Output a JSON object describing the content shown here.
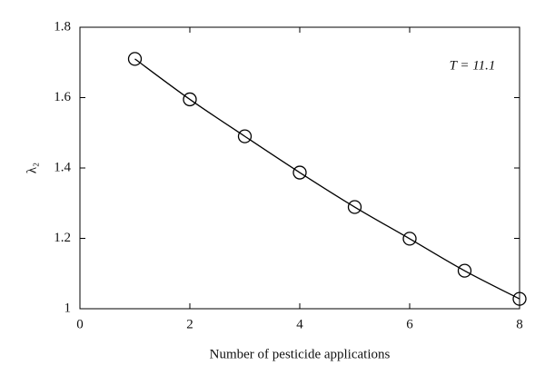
{
  "chart_data": {
    "type": "line",
    "x_label": "Number of pesticide applications",
    "y_label": "λ₂",
    "annotation": "T = 11.1",
    "x": [
      1,
      2,
      3,
      4,
      5,
      6,
      7,
      8
    ],
    "series": [
      {
        "color": "#000000",
        "values": [
          1.71,
          1.595,
          1.49,
          1.387,
          1.289,
          1.199,
          1.108,
          1.028
        ]
      }
    ],
    "markers": "circle",
    "xlim": [
      0,
      8
    ],
    "xticks": [
      0,
      2,
      4,
      6,
      8
    ],
    "ylim": [
      1,
      1.8
    ],
    "yticks": [
      1,
      1.2,
      1.4,
      1.6,
      1.8
    ],
    "grid": false
  }
}
